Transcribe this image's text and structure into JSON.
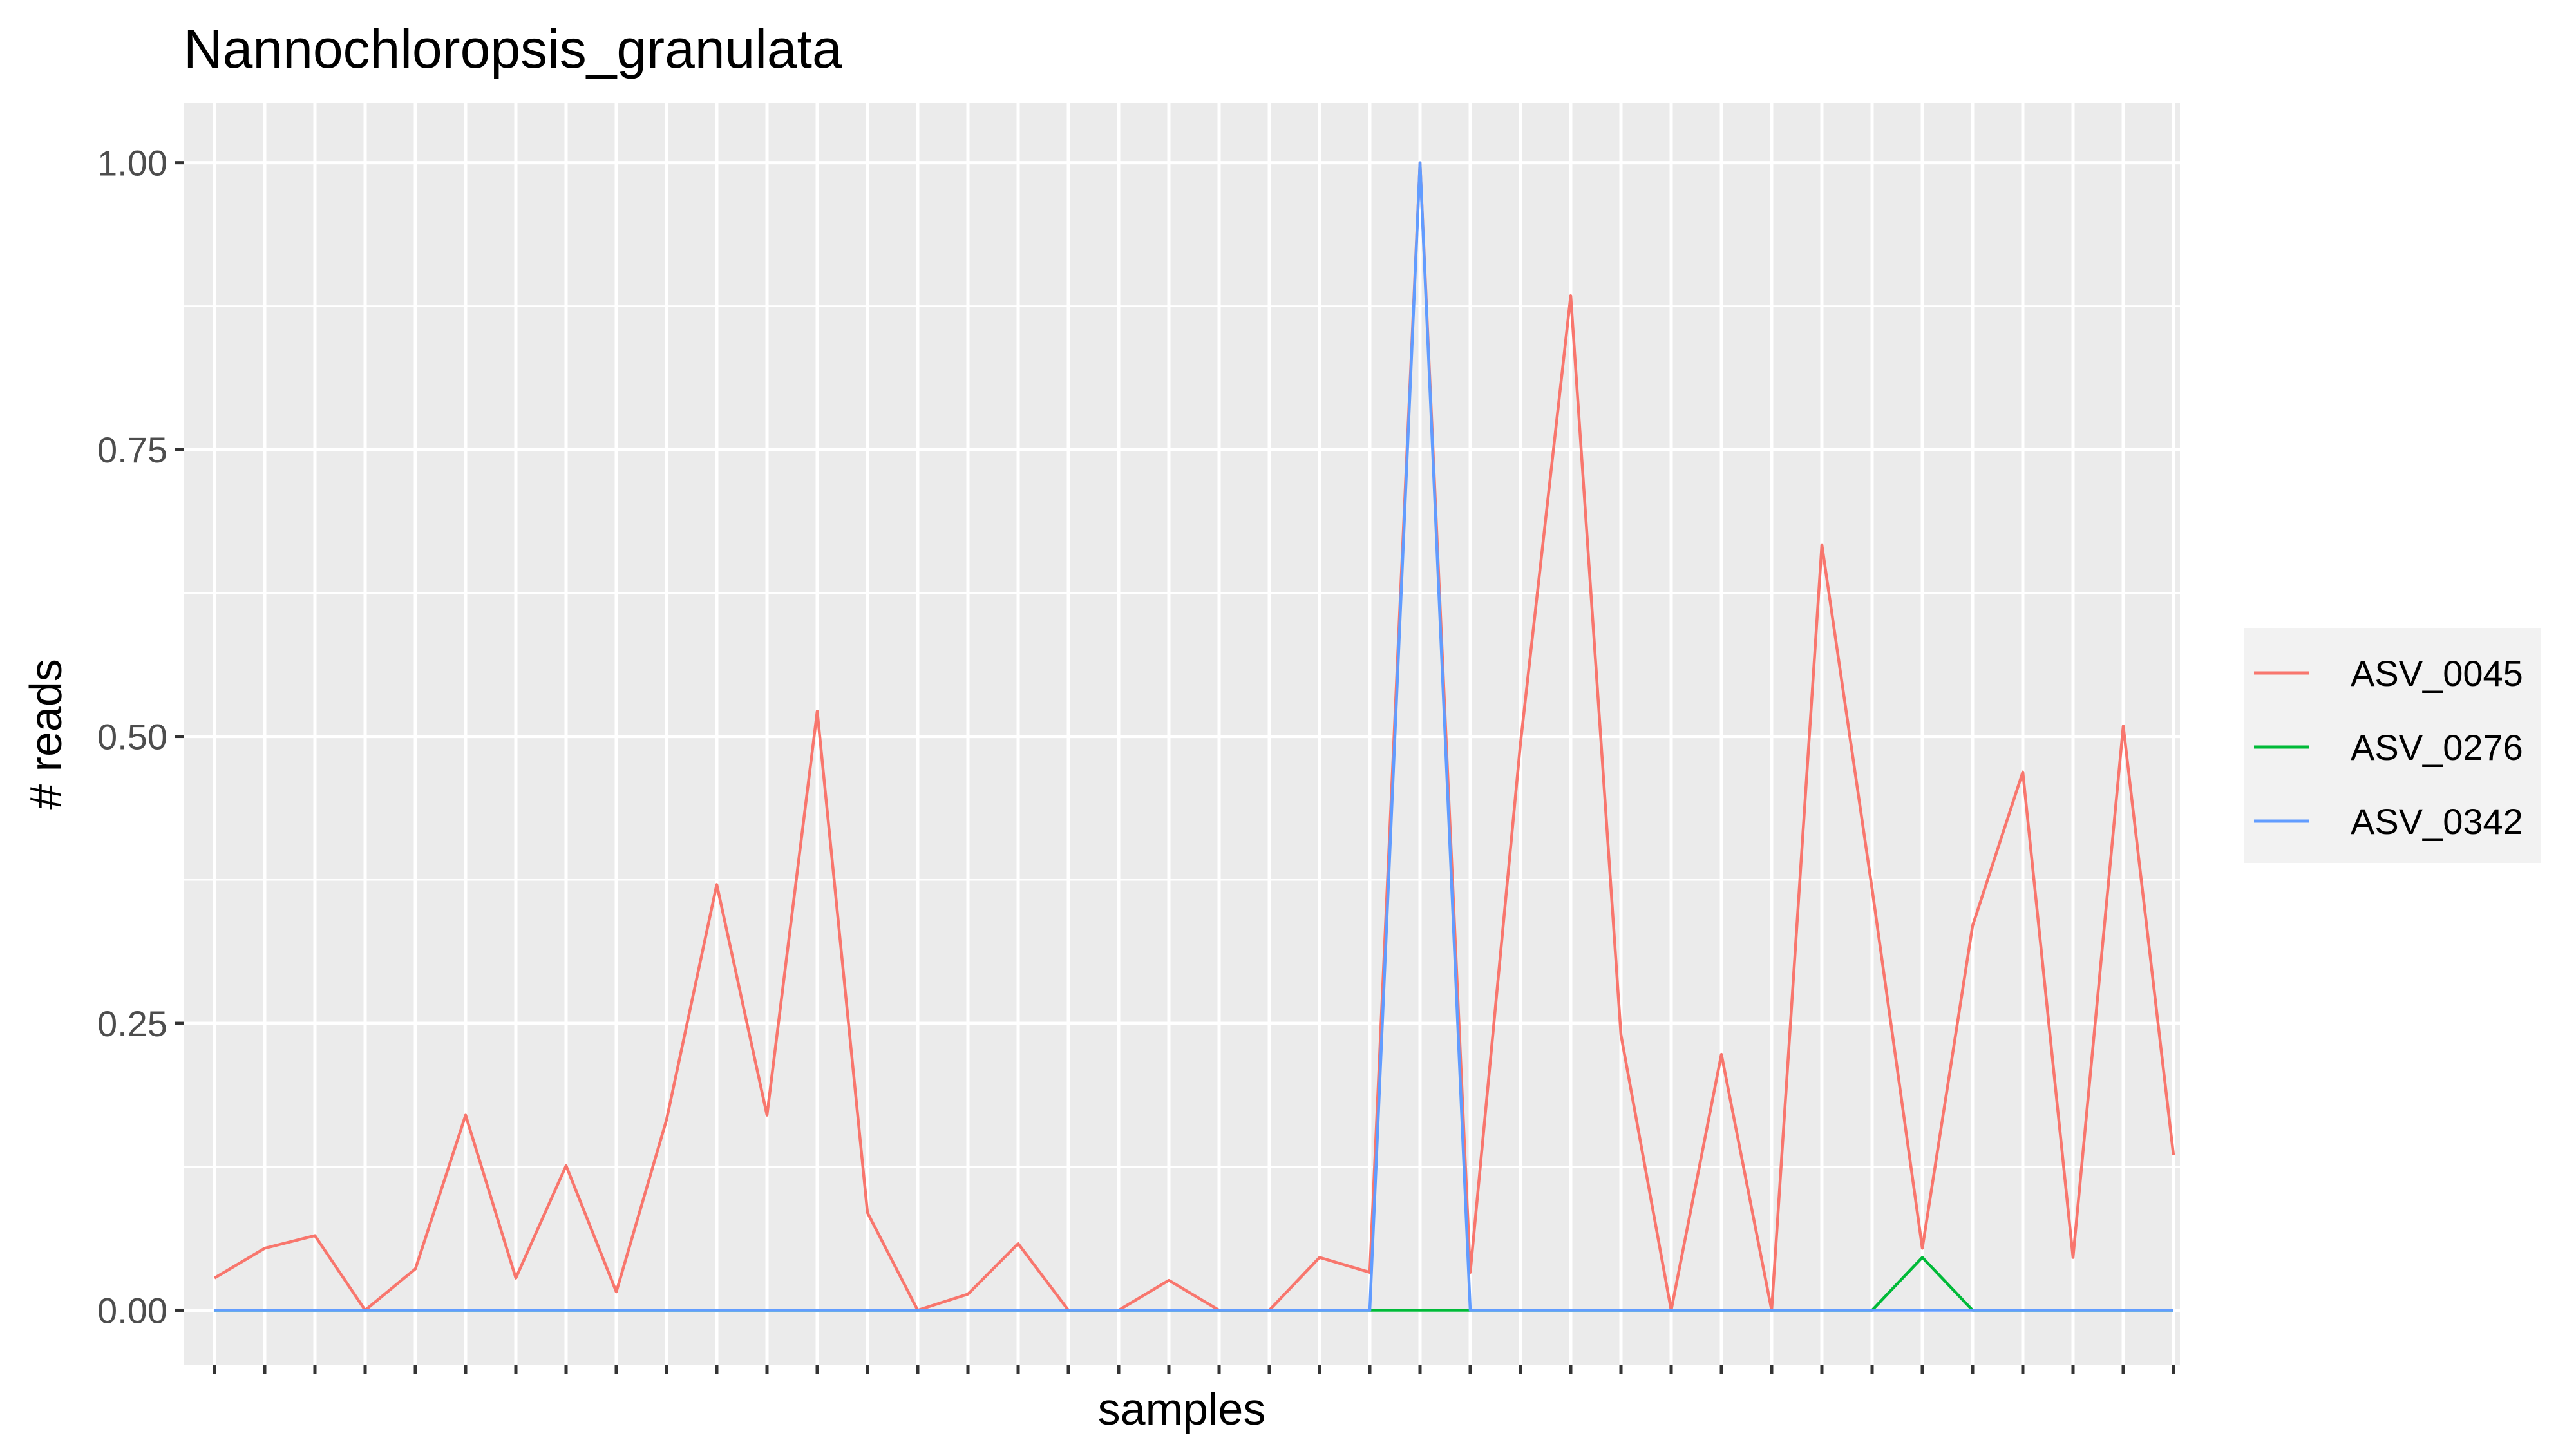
{
  "chart_data": {
    "type": "line",
    "title": "Nannochloropsis_granulata",
    "xlabel": "samples",
    "ylabel": "# reads",
    "ylim": [
      -0.048,
      1.052
    ],
    "yticks": [
      0.0,
      0.25,
      0.5,
      0.75,
      1.0
    ],
    "ytick_labels": [
      "0.00",
      "0.25",
      "0.50",
      "0.75",
      "1.00"
    ],
    "x_count": 40,
    "x_tick_labels_shown": false,
    "grid": true,
    "legend_position": "right",
    "series": [
      {
        "name": "ASV_0045",
        "color": "#F8766D",
        "values": [
          0.028,
          0.054,
          0.065,
          0.0,
          0.036,
          0.17,
          0.028,
          0.126,
          0.016,
          0.166,
          0.371,
          0.17,
          0.522,
          0.085,
          0.0,
          0.014,
          0.058,
          0.0,
          0.0,
          0.026,
          0.0,
          0.0,
          0.046,
          0.033,
          1.0,
          0.033,
          0.494,
          0.884,
          0.24,
          0.0,
          0.223,
          0.0,
          0.667,
          0.367,
          0.054,
          0.335,
          0.469,
          0.046,
          0.509,
          0.135
        ]
      },
      {
        "name": "ASV_0276",
        "color": "#00BA38",
        "values": [
          0,
          0,
          0,
          0,
          0,
          0,
          0,
          0,
          0,
          0,
          0,
          0,
          0,
          0,
          0,
          0,
          0,
          0,
          0,
          0,
          0,
          0,
          0,
          0,
          0,
          0,
          0,
          0,
          0,
          0,
          0,
          0,
          0,
          0,
          0.046,
          0,
          0,
          0,
          0,
          0
        ]
      },
      {
        "name": "ASV_0342",
        "color": "#619CFF",
        "values": [
          0,
          0,
          0,
          0,
          0,
          0,
          0,
          0,
          0,
          0,
          0,
          0,
          0,
          0,
          0,
          0,
          0,
          0,
          0,
          0,
          0,
          0,
          0,
          0,
          1.0,
          0,
          0,
          0,
          0,
          0,
          0,
          0,
          0,
          0,
          0,
          0,
          0,
          0,
          0,
          0
        ]
      }
    ]
  }
}
